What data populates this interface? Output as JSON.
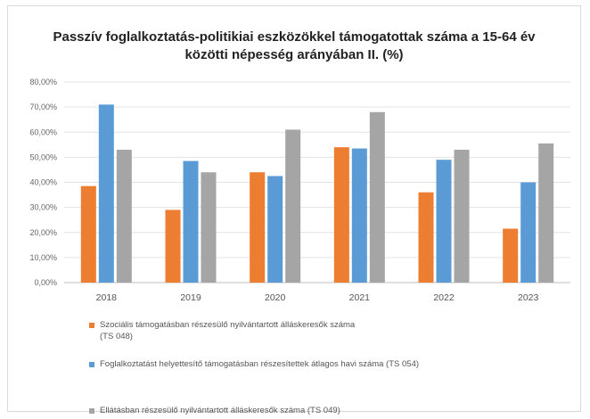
{
  "chart_data": {
    "type": "bar",
    "title": "Passzív foglalkoztatás-politikiai eszközökkel támogatottak száma a 15-64 év közötti népesség  arányában II. (%)",
    "categories": [
      "2018",
      "2019",
      "2020",
      "2021",
      "2022",
      "2023"
    ],
    "series": [
      {
        "name": "Szociális támogatásban részesülő nyilvántartott álláskeresők száma\n(TS 048)",
        "color": "#ed7d31",
        "values": [
          38.5,
          29.0,
          44.0,
          54.0,
          36.0,
          21.5
        ]
      },
      {
        "name": "Foglalkoztatást helyettesítő támogatásban részesítettek átlagos havi száma (TS 054)",
        "color": "#5b9bd5",
        "values": [
          71.0,
          48.5,
          42.5,
          53.5,
          49.0,
          40.0
        ]
      },
      {
        "name": "Ellátásban részesülő nyilvántartott álláskeresők száma (TS 049)",
        "color": "#a5a5a5",
        "values": [
          53.0,
          44.0,
          61.0,
          68.0,
          53.0,
          55.5
        ]
      }
    ],
    "ylim": [
      0,
      80
    ],
    "y_ticks": [
      "0,00%",
      "10,00%",
      "20,00%",
      "30,00%",
      "40,00%",
      "50,00%",
      "60,00%",
      "70,00%",
      "80,00%"
    ],
    "grid": true,
    "legend_position": "bottom"
  }
}
